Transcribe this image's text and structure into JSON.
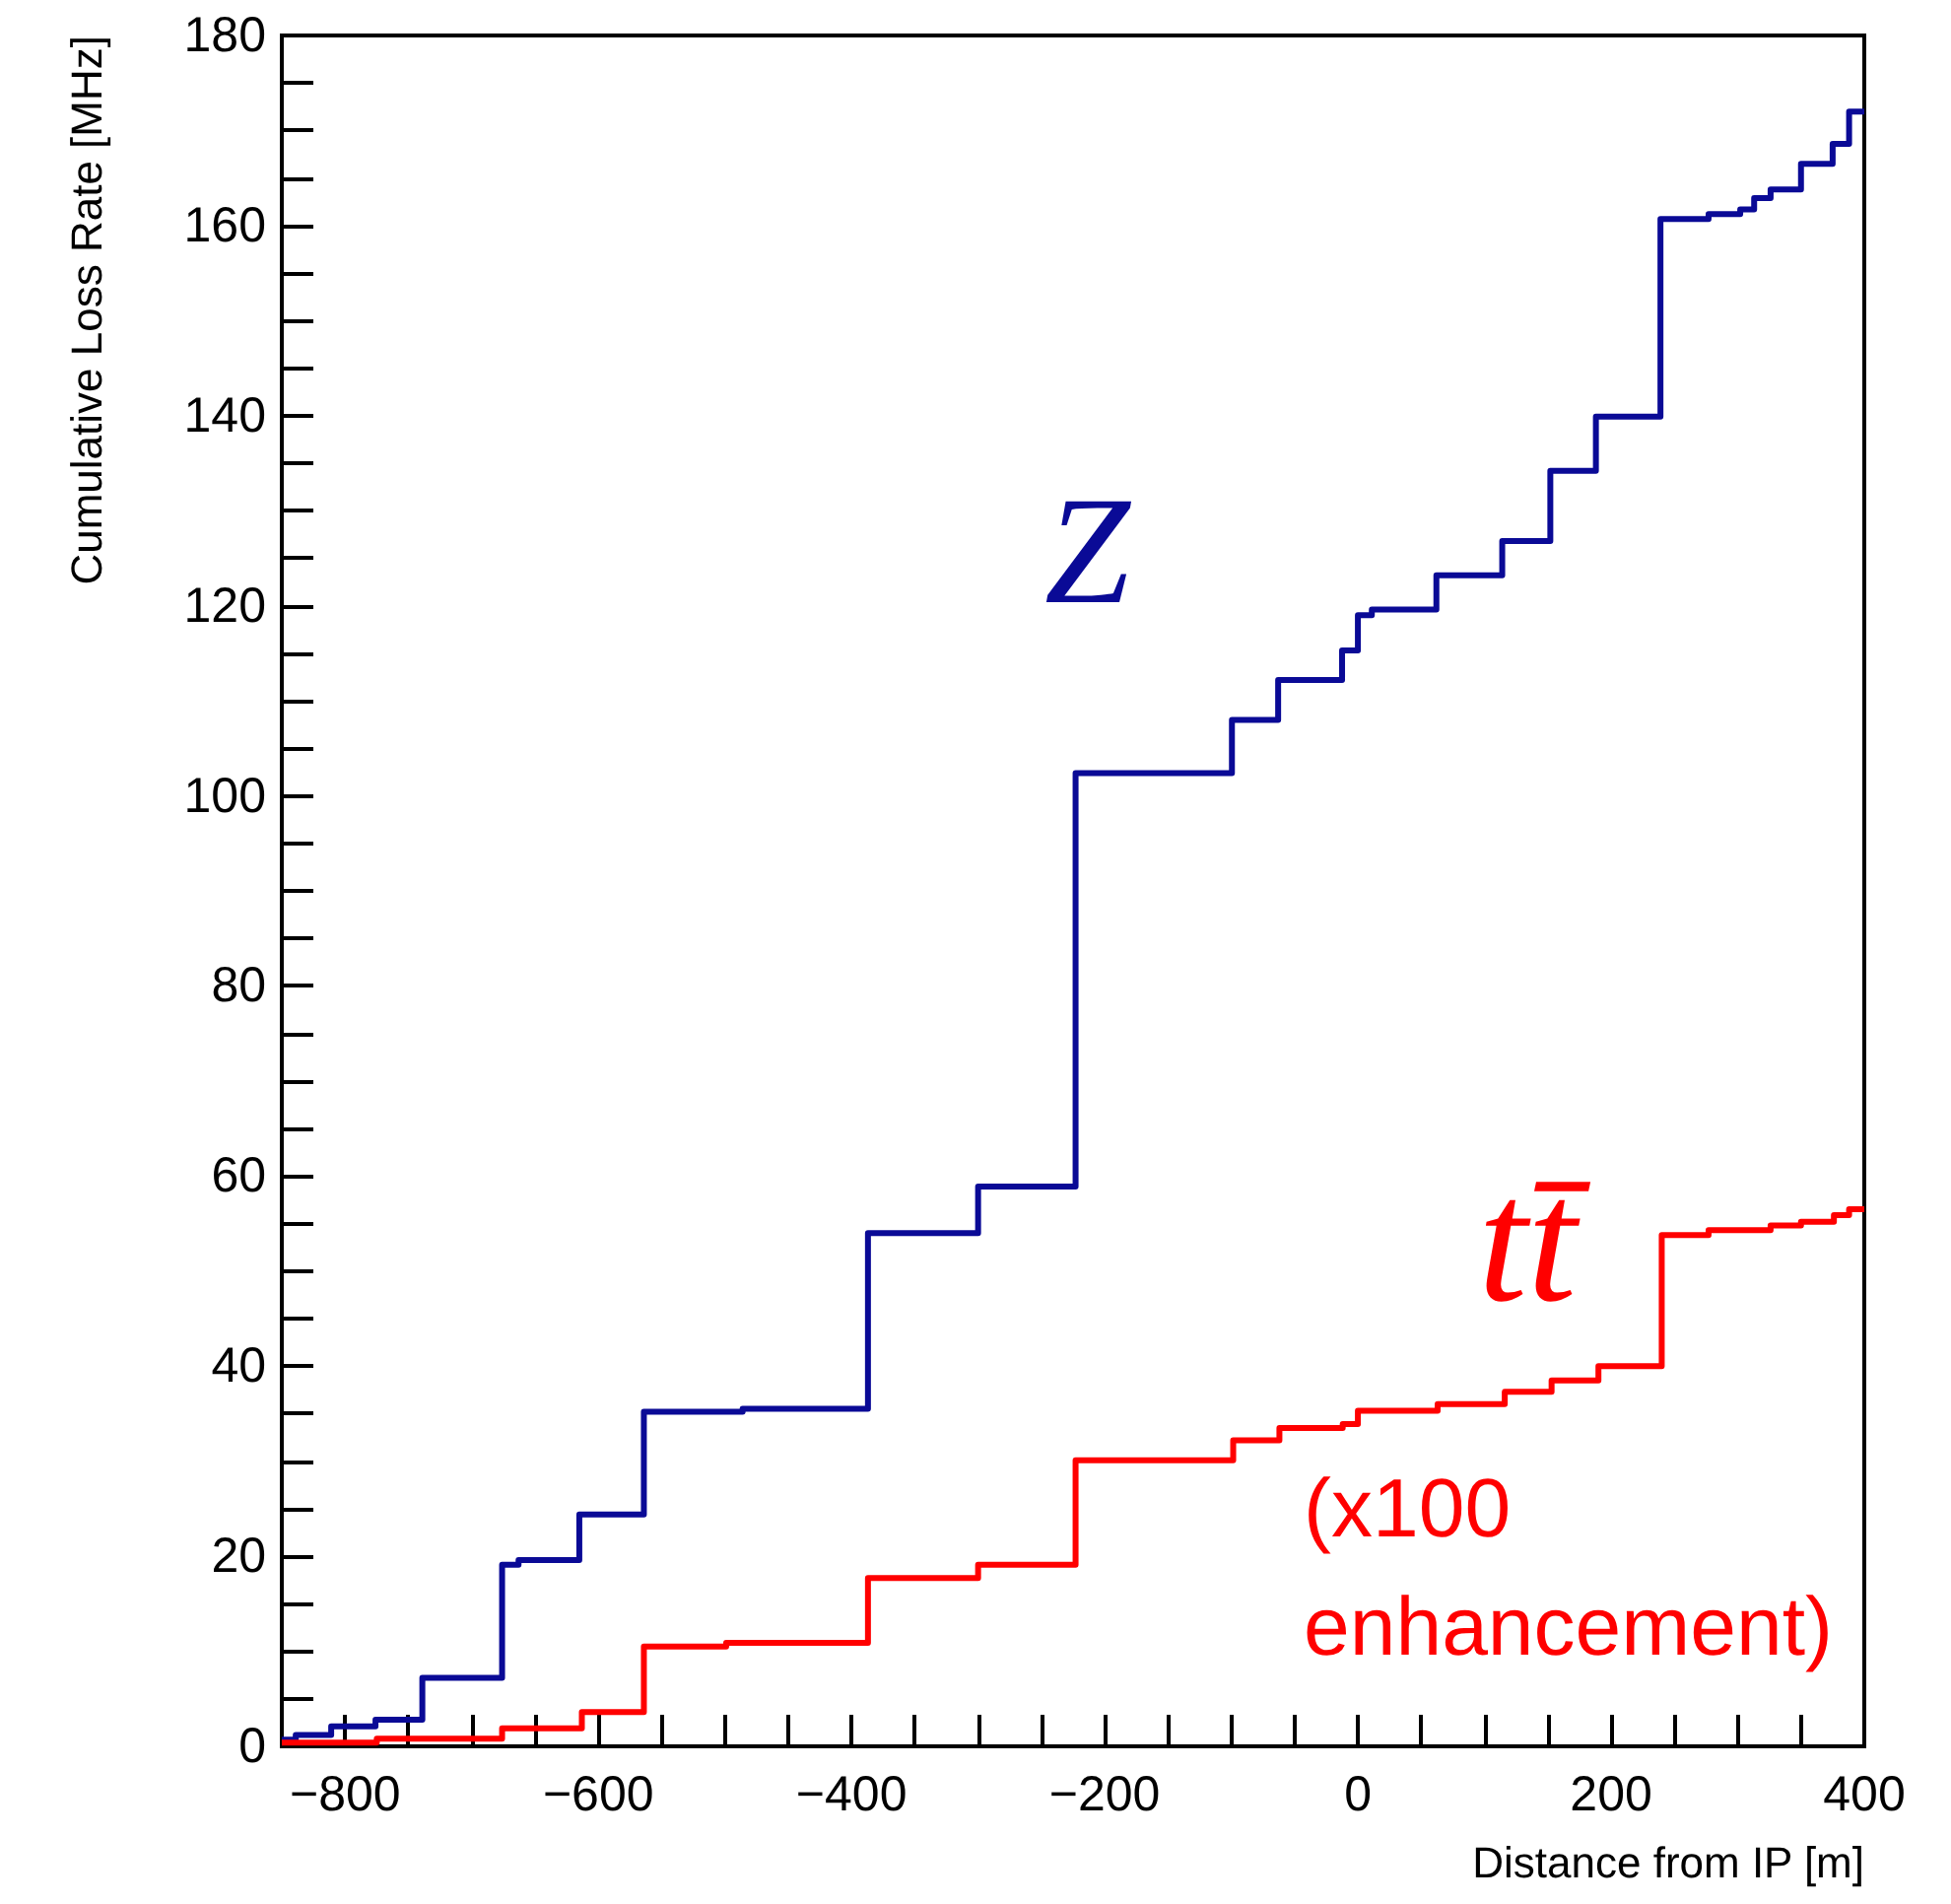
{
  "chart_data": {
    "type": "step",
    "xlabel": "Distance from IP [m]",
    "ylabel": "Cumulative Loss Rate [MHz]",
    "xlim": [
      -850,
      400
    ],
    "xticks": [
      -800,
      -600,
      -400,
      -200,
      0,
      200,
      400
    ],
    "ylim": [
      0,
      180
    ],
    "yticks": [
      0,
      20,
      40,
      60,
      80,
      100,
      120,
      140,
      160,
      180
    ],
    "grid": false,
    "legend": false,
    "marker": "none",
    "line_style": "solid",
    "annotations": [
      "(x100\nenhancement)"
    ],
    "series": [
      {
        "name": "Z",
        "color": "#0a0a96",
        "x": [
          -850,
          -839,
          -811,
          -776,
          -739,
          -676,
          -663,
          -615,
          -564,
          -486,
          -387,
          -300,
          -223,
          -99.5,
          -63,
          -12.5,
          0,
          11,
          62,
          114,
          152,
          188,
          239,
          277,
          302,
          313,
          326,
          350,
          375,
          388,
          400
        ],
        "values": [
          0.7,
          1.2,
          2.1,
          2.8,
          7.2,
          19.1,
          19.6,
          24.4,
          35.2,
          35.5,
          54.0,
          58.9,
          102.4,
          108.0,
          112.2,
          115.3,
          119.0,
          119.6,
          123.2,
          126.8,
          134.2,
          139.9,
          160.7,
          161.2,
          161.7,
          162.9,
          163.8,
          166.5,
          168.6,
          172.0,
          172.0
        ]
      },
      {
        "name": "tt̄",
        "color": "#ff0000",
        "x": [
          -850,
          -775,
          -676,
          -613,
          -564,
          -499,
          -387,
          -300,
          -223,
          -98.5,
          -62,
          -12,
          0,
          63,
          116,
          153,
          190,
          240,
          277,
          326,
          350,
          376,
          388,
          400
        ],
        "values": [
          0.4,
          0.8,
          1.9,
          3.6,
          10.5,
          10.9,
          17.7,
          19.1,
          30.1,
          32.2,
          33.5,
          33.9,
          35.3,
          36.0,
          37.3,
          38.5,
          40.0,
          53.8,
          54.3,
          54.8,
          55.2,
          55.9,
          56.5,
          56.5
        ]
      }
    ]
  }
}
